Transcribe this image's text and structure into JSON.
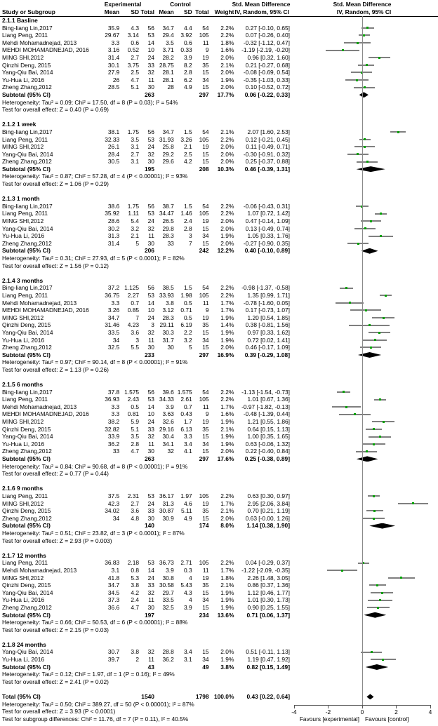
{
  "chart_data": {
    "type": "forest",
    "title": "",
    "x_axis": {
      "range": [
        -4,
        4
      ],
      "ticks": [
        "-4",
        "-2",
        "0",
        "2",
        "4"
      ],
      "tick_values": [
        -4,
        -2,
        0,
        2,
        4
      ],
      "left_label": "Favours [experimental]",
      "right_label": "Favours [control]"
    },
    "columns": {
      "study": "Study or Subgroup",
      "group_experimental": "Experimental",
      "group_control": "Control",
      "mean": "Mean",
      "sd": "SD",
      "total": "Total",
      "weight": "Weight",
      "smd": "Std. Mean Difference",
      "ci": "IV, Random, 95% CI"
    },
    "labels": {
      "subtotal": "Subtotal (95% CI)",
      "total": "Total (95% CI)"
    },
    "sections": [
      {
        "label": "2.1.1 Basline",
        "studies": [
          {
            "study": "Bing-liang Lin,2017",
            "m1": "35.9",
            "sd1": "4.3",
            "n1": "56",
            "m2": "34.7",
            "sd2": "4.4",
            "n2": "54",
            "w": "2.2%",
            "ci": "0.27 [-0.10, 0.65]"
          },
          {
            "study": "Liang Peng, 2011",
            "m1": "29.67",
            "sd1": "3.14",
            "n1": "53",
            "m2": "29.4",
            "sd2": "3.92",
            "n2": "105",
            "w": "2.2%",
            "ci": "0.07 [-0.26, 0.40]"
          },
          {
            "study": "Mehdi Mohamadnejad, 2013",
            "m1": "3.3",
            "sd1": "0.6",
            "n1": "14",
            "m2": "3.5",
            "sd2": "0.6",
            "n2": "11",
            "w": "1.8%",
            "ci": "-0.32 [-1.12, 0.47]"
          },
          {
            "study": "MEHDI MOHAMADNEJAD, 2016",
            "m1": "3.16",
            "sd1": "0.52",
            "n1": "10",
            "m2": "3.71",
            "sd2": "0.33",
            "n2": "9",
            "w": "1.6%",
            "ci": "-1.19 [-2.19, -0.20]"
          },
          {
            "study": "MING SHI,2012",
            "m1": "31.4",
            "sd1": "2.7",
            "n1": "24",
            "m2": "28.2",
            "sd2": "3.9",
            "n2": "19",
            "w": "2.0%",
            "ci": "0.96 [0.32, 1.60]"
          },
          {
            "study": "Qinzhi Deng, 2015",
            "m1": "30.1",
            "sd1": "3.75",
            "n1": "33",
            "m2": "28.75",
            "sd2": "8.2",
            "n2": "35",
            "w": "2.1%",
            "ci": "0.21 [-0.27, 0.68]"
          },
          {
            "study": "Yang-Qiu Bai, 2014",
            "m1": "27.9",
            "sd1": "2.5",
            "n1": "32",
            "m2": "28.1",
            "sd2": "2.8",
            "n2": "15",
            "w": "2.0%",
            "ci": "-0.08 [-0.69, 0.54]"
          },
          {
            "study": "Yu-Hua Li, 2016",
            "m1": "26",
            "sd1": "4.7",
            "n1": "11",
            "m2": "28.1",
            "sd2": "6.2",
            "n2": "34",
            "w": "1.9%",
            "ci": "-0.35 [-1.03, 0.33]"
          },
          {
            "study": "Zheng Zhang,2012",
            "m1": "28.5",
            "sd1": "5.1",
            "n1": "30",
            "m2": "28",
            "sd2": "4.9",
            "n2": "15",
            "w": "2.0%",
            "ci": "0.10 [-0.52, 0.72]"
          }
        ],
        "subtotal": {
          "n1": "263",
          "n2": "297",
          "w": "17.7%",
          "ci": "0.06 [-0.22, 0.33]"
        },
        "heterogeneity": "Heterogeneity: Tau² = 0.09; Chi² = 17.50, df = 8 (P = 0.03); I² = 54%",
        "overall": "Test for overall effect: Z = 0.40 (P = 0.69)"
      },
      {
        "label": "2.1.2 1 week",
        "studies": [
          {
            "study": "Bing-liang Lin,2017",
            "m1": "38.1",
            "sd1": "1.75",
            "n1": "56",
            "m2": "34.7",
            "sd2": "1.5",
            "n2": "54",
            "w": "2.1%",
            "ci": "2.07 [1.60, 2.53]"
          },
          {
            "study": "Liang Peng, 2011",
            "m1": "32.33",
            "sd1": "3.5",
            "n1": "53",
            "m2": "31.93",
            "sd2": "3.26",
            "n2": "105",
            "w": "2.2%",
            "ci": "0.12 [-0.21, 0.45]"
          },
          {
            "study": "MING SHI,2012",
            "m1": "26.1",
            "sd1": "3.1",
            "n1": "24",
            "m2": "25.8",
            "sd2": "2.1",
            "n2": "19",
            "w": "2.0%",
            "ci": "0.11 [-0.49, 0.71]"
          },
          {
            "study": "Yang-Qiu Bai, 2014",
            "m1": "28.4",
            "sd1": "2.7",
            "n1": "32",
            "m2": "29.2",
            "sd2": "2.5",
            "n2": "15",
            "w": "2.0%",
            "ci": "-0.30 [-0.91, 0.32]"
          },
          {
            "study": "Zheng Zhang,2012",
            "m1": "30.5",
            "sd1": "3.1",
            "n1": "30",
            "m2": "29.6",
            "sd2": "4.2",
            "n2": "15",
            "w": "2.0%",
            "ci": "0.25 [-0.37, 0.88]"
          }
        ],
        "subtotal": {
          "n1": "195",
          "n2": "208",
          "w": "10.3%",
          "ci": "0.46 [-0.39, 1.31]"
        },
        "heterogeneity": "Heterogeneity: Tau² = 0.87; Chi² = 57.28, df = 4 (P < 0.00001); I² = 93%",
        "overall": "Test for overall effect: Z = 1.06 (P = 0.29)"
      },
      {
        "label": "2.1.3 1 month",
        "studies": [
          {
            "study": "Bing-liang Lin,2017",
            "m1": "38.6",
            "sd1": "1.75",
            "n1": "56",
            "m2": "38.7",
            "sd2": "1.5",
            "n2": "54",
            "w": "2.2%",
            "ci": "-0.06 [-0.43, 0.31]"
          },
          {
            "study": "Liang Peng, 2011",
            "m1": "35.92",
            "sd1": "1.11",
            "n1": "53",
            "m2": "34.47",
            "sd2": "1.46",
            "n2": "105",
            "w": "2.2%",
            "ci": "1.07 [0.72, 1.42]"
          },
          {
            "study": "MING SHI,2012",
            "m1": "28.6",
            "sd1": "5.4",
            "n1": "24",
            "m2": "26.5",
            "sd2": "2.4",
            "n2": "19",
            "w": "2.0%",
            "ci": "0.47 [-0.14, 1.09]"
          },
          {
            "study": "Yang-Qiu Bai, 2014",
            "m1": "30.2",
            "sd1": "3.2",
            "n1": "32",
            "m2": "29.8",
            "sd2": "2.8",
            "n2": "15",
            "w": "2.0%",
            "ci": "0.13 [-0.49, 0.74]"
          },
          {
            "study": "Yu-Hua Li, 2016",
            "m1": "31.3",
            "sd1": "2.1",
            "n1": "11",
            "m2": "28.3",
            "sd2": "3",
            "n2": "34",
            "w": "1.9%",
            "ci": "1.05 [0.33, 1.76]"
          },
          {
            "study": "Zheng Zhang,2012",
            "m1": "31.4",
            "sd1": "5",
            "n1": "30",
            "m2": "33",
            "sd2": "7",
            "n2": "15",
            "w": "2.0%",
            "ci": "-0.27 [-0.90, 0.35]"
          }
        ],
        "subtotal": {
          "n1": "206",
          "n2": "242",
          "w": "12.2%",
          "ci": "0.40 [-0.10, 0.89]"
        },
        "heterogeneity": "Heterogeneity: Tau² = 0.31; Chi² = 27.93, df = 5 (P < 0.0001); I² = 82%",
        "overall": "Test for overall effect: Z = 1.56 (P = 0.12)"
      },
      {
        "label": "2.1.4 3 months",
        "studies": [
          {
            "study": "Bing-liang Lin,2017",
            "m1": "37.2",
            "sd1": "1.125",
            "n1": "56",
            "m2": "38.5",
            "sd2": "1.5",
            "n2": "54",
            "w": "2.2%",
            "ci": "-0.98 [-1.37, -0.58]"
          },
          {
            "study": "Liang Peng, 2011",
            "m1": "36.75",
            "sd1": "2.27",
            "n1": "53",
            "m2": "33.93",
            "sd2": "1.98",
            "n2": "105",
            "w": "2.2%",
            "ci": "1.35 [0.99, 1.71]"
          },
          {
            "study": "Mehdi Mohamadnejad, 2013",
            "m1": "3.3",
            "sd1": "0.7",
            "n1": "14",
            "m2": "3.8",
            "sd2": "0.5",
            "n2": "11",
            "w": "1.7%",
            "ci": "-0.78 [-1.60, 0.05]"
          },
          {
            "study": "MEHDI MOHAMADNEJAD, 2016",
            "m1": "3.26",
            "sd1": "0.85",
            "n1": "10",
            "m2": "3.12",
            "sd2": "0.71",
            "n2": "9",
            "w": "1.7%",
            "ci": "0.17 [-0.73, 1.07]"
          },
          {
            "study": "MING SHI,2012",
            "m1": "34.7",
            "sd1": "7",
            "n1": "24",
            "m2": "28.3",
            "sd2": "0.5",
            "n2": "19",
            "w": "1.9%",
            "ci": "1.20 [0.54, 1.85]"
          },
          {
            "study": "Qinzhi Deng, 2015",
            "m1": "31.46",
            "sd1": "4.23",
            "n1": "3",
            "m2": "29.11",
            "sd2": "6.19",
            "n2": "35",
            "w": "1.4%",
            "ci": "0.38 [-0.81, 1.56]"
          },
          {
            "study": "Yang-Qiu Bai, 2014",
            "m1": "33.5",
            "sd1": "3.6",
            "n1": "32",
            "m2": "30.3",
            "sd2": "2.2",
            "n2": "15",
            "w": "1.9%",
            "ci": "0.97 [0.33, 1.62]"
          },
          {
            "study": "Yu-Hua Li, 2016",
            "m1": "34",
            "sd1": "3",
            "n1": "11",
            "m2": "31.7",
            "sd2": "3.2",
            "n2": "34",
            "w": "1.9%",
            "ci": "0.72 [0.02, 1.41]"
          },
          {
            "study": "Zheng Zhang,2012",
            "m1": "32.5",
            "sd1": "5.5",
            "n1": "30",
            "m2": "30",
            "sd2": "5",
            "n2": "15",
            "w": "2.0%",
            "ci": "0.46 [-0.17, 1.09]"
          }
        ],
        "subtotal": {
          "n1": "233",
          "n2": "297",
          "w": "16.9%",
          "ci": "0.39 [-0.29, 1.08]"
        },
        "heterogeneity": "Heterogeneity: Tau² = 0.97; Chi² = 90.14, df = 8 (P < 0.00001); I² = 91%",
        "overall": "Test for overall effect: Z = 1.13 (P = 0.26)"
      },
      {
        "label": "2.1.5 6 months",
        "studies": [
          {
            "study": "Bing-liang Lin,2017",
            "m1": "37.8",
            "sd1": "1.575",
            "n1": "56",
            "m2": "39.6",
            "sd2": "1.575",
            "n2": "54",
            "w": "2.2%",
            "ci": "-1.13 [-1.54, -0.73]"
          },
          {
            "study": "Liang Peng, 2011",
            "m1": "36.93",
            "sd1": "2.43",
            "n1": "53",
            "m2": "34.33",
            "sd2": "2.61",
            "n2": "105",
            "w": "2.2%",
            "ci": "1.01 [0.67, 1.36]"
          },
          {
            "study": "Mehdi Mohamadnejad, 2013",
            "m1": "3.3",
            "sd1": "0.5",
            "n1": "14",
            "m2": "3.9",
            "sd2": "0.7",
            "n2": "11",
            "w": "1.7%",
            "ci": "-0.97 [-1.82, -0.13]"
          },
          {
            "study": "MEHDI MOHAMADNEJAD, 2016",
            "m1": "3.3",
            "sd1": "0.81",
            "n1": "10",
            "m2": "3.63",
            "sd2": "0.43",
            "n2": "9",
            "w": "1.6%",
            "ci": "-0.48 [-1.39, 0.44]"
          },
          {
            "study": "MING SHI,2012",
            "m1": "38.2",
            "sd1": "5.9",
            "n1": "24",
            "m2": "32.6",
            "sd2": "1.7",
            "n2": "19",
            "w": "1.9%",
            "ci": "1.21 [0.55, 1.86]"
          },
          {
            "study": "Qinzhi Deng, 2015",
            "m1": "32.82",
            "sd1": "5.1",
            "n1": "33",
            "m2": "29.16",
            "sd2": "6.13",
            "n2": "35",
            "w": "2.1%",
            "ci": "0.64 [0.15, 1.13]"
          },
          {
            "study": "Yang-Qiu Bai, 2014",
            "m1": "33.9",
            "sd1": "3.5",
            "n1": "32",
            "m2": "30.4",
            "sd2": "3.3",
            "n2": "15",
            "w": "1.9%",
            "ci": "1.00 [0.35, 1.65]"
          },
          {
            "study": "Yu-Hua Li, 2016",
            "m1": "36.2",
            "sd1": "2.8",
            "n1": "11",
            "m2": "34.1",
            "sd2": "3.4",
            "n2": "34",
            "w": "1.9%",
            "ci": "0.63 [-0.06, 1.32]"
          },
          {
            "study": "Zheng Zhang,2012",
            "m1": "33",
            "sd1": "4.7",
            "n1": "30",
            "m2": "32",
            "sd2": "4.1",
            "n2": "15",
            "w": "2.0%",
            "ci": "0.22 [-0.40, 0.84]"
          }
        ],
        "subtotal": {
          "n1": "263",
          "n2": "297",
          "w": "17.6%",
          "ci": "0.25 [-0.38, 0.89]"
        },
        "heterogeneity": "Heterogeneity: Tau² = 0.84; Chi² = 90.68, df = 8 (P < 0.00001); I² = 91%",
        "overall": "Test for overall effect: Z = 0.77 (P = 0.44)"
      },
      {
        "label": "2.1.6 9 months",
        "studies": [
          {
            "study": "Liang Peng, 2011",
            "m1": "37.5",
            "sd1": "2.31",
            "n1": "53",
            "m2": "36.17",
            "sd2": "1.97",
            "n2": "105",
            "w": "2.2%",
            "ci": "0.63 [0.30, 0.97]"
          },
          {
            "study": "MING SHI,2012",
            "m1": "42.3",
            "sd1": "2.7",
            "n1": "24",
            "m2": "31.3",
            "sd2": "4.6",
            "n2": "19",
            "w": "1.7%",
            "ci": "2.95 [2.06, 3.84]"
          },
          {
            "study": "Qinzhi Deng, 2015",
            "m1": "34.02",
            "sd1": "3.6",
            "n1": "33",
            "m2": "30.87",
            "sd2": "5.11",
            "n2": "35",
            "w": "2.1%",
            "ci": "0.70 [0.21, 1.19]"
          },
          {
            "study": "Zheng Zhang,2012",
            "m1": "34",
            "sd1": "4.8",
            "n1": "30",
            "m2": "30.9",
            "sd2": "4.9",
            "n2": "15",
            "w": "2.0%",
            "ci": "0.63 [-0.00, 1.26]"
          }
        ],
        "subtotal": {
          "n1": "140",
          "n2": "174",
          "w": "8.0%",
          "ci": "1.14 [0.38, 1.90]"
        },
        "heterogeneity": "Heterogeneity: Tau² = 0.51; Chi² = 23.82, df = 3 (P < 0.0001); I² = 87%",
        "overall": "Test for overall effect: Z = 2.93 (P = 0.003)"
      },
      {
        "label": "2.1.7 12 months",
        "studies": [
          {
            "study": "Liang Peng, 2011",
            "m1": "36.83",
            "sd1": "2.18",
            "n1": "53",
            "m2": "36.73",
            "sd2": "2.71",
            "n2": "105",
            "w": "2.2%",
            "ci": "0.04 [-0.29, 0.37]"
          },
          {
            "study": "Mehdi Mohamadnejad, 2013",
            "m1": "3.1",
            "sd1": "0.8",
            "n1": "14",
            "m2": "3.9",
            "sd2": "0.3",
            "n2": "11",
            "w": "1.7%",
            "ci": "-1.22 [-2.09, -0.35]"
          },
          {
            "study": "MING SHI,2012",
            "m1": "41.8",
            "sd1": "5.3",
            "n1": "24",
            "m2": "30.8",
            "sd2": "4",
            "n2": "19",
            "w": "1.8%",
            "ci": "2.26 [1.48, 3.05]"
          },
          {
            "study": "Qinzhi Deng, 2015",
            "m1": "34.7",
            "sd1": "3.8",
            "n1": "33",
            "m2": "30.58",
            "sd2": "5.43",
            "n2": "35",
            "w": "2.1%",
            "ci": "0.86 [0.37, 1.36]"
          },
          {
            "study": "Yang-Qiu Bai, 2014",
            "m1": "34.5",
            "sd1": "4.2",
            "n1": "32",
            "m2": "29.7",
            "sd2": "4.3",
            "n2": "15",
            "w": "1.9%",
            "ci": "1.12 [0.46, 1.77]"
          },
          {
            "study": "Yu-Hua Li, 2016",
            "m1": "37.3",
            "sd1": "2.4",
            "n1": "11",
            "m2": "33.5",
            "sd2": "4",
            "n2": "34",
            "w": "1.9%",
            "ci": "1.01 [0.30, 1.73]"
          },
          {
            "study": "Zheng Zhang,2012",
            "m1": "36.6",
            "sd1": "4.7",
            "n1": "30",
            "m2": "32.5",
            "sd2": "3.9",
            "n2": "15",
            "w": "1.9%",
            "ci": "0.90 [0.25, 1.55]"
          }
        ],
        "subtotal": {
          "n1": "197",
          "n2": "234",
          "w": "13.6%",
          "ci": "0.71 [0.06, 1.37]"
        },
        "heterogeneity": "Heterogeneity: Tau² = 0.66; Chi² = 50.53, df = 6 (P < 0.00001); I² = 88%",
        "overall": "Test for overall effect: Z = 2.15 (P = 0.03)"
      },
      {
        "label": "2.1.8 24 months",
        "studies": [
          {
            "study": "Yang-Qiu Bai, 2014",
            "m1": "30.7",
            "sd1": "3.8",
            "n1": "32",
            "m2": "28.8",
            "sd2": "3.4",
            "n2": "15",
            "w": "2.0%",
            "ci": "0.51 [-0.11, 1.13]"
          },
          {
            "study": "Yu-Hua Li, 2016",
            "m1": "39.7",
            "sd1": "2",
            "n1": "11",
            "m2": "36.2",
            "sd2": "3.1",
            "n2": "34",
            "w": "1.9%",
            "ci": "1.19 [0.47, 1.92]"
          }
        ],
        "subtotal": {
          "n1": "43",
          "n2": "49",
          "w": "3.8%",
          "ci": "0.82 [0.15, 1.49]"
        },
        "heterogeneity": "Heterogeneity: Tau² = 0.12; Chi² = 1.97, df = 1 (P = 0.16); I² = 49%",
        "overall": "Test for overall effect: Z = 2.41 (P = 0.02)"
      }
    ],
    "total": {
      "n1": "1540",
      "n2": "1798",
      "w": "100.0%",
      "ci": "0.43 [0.22, 0.64]"
    },
    "footnotes": [
      "Heterogeneity: Tau² = 0.50; Chi² = 389.27, df = 50 (P < 0.00001); I² = 87%",
      "Test for overall effect: Z = 3.93 (P < 0.0001)",
      "Test for subgroup differences: Chi² = 11.76, df = 7 (P = 0.11), I² = 40.5%"
    ]
  },
  "colors": {
    "marker_green": "#00a000",
    "ci_line_gray": "#7f7f7f",
    "diamond_black": "#000000",
    "axis_gray": "#555555"
  }
}
